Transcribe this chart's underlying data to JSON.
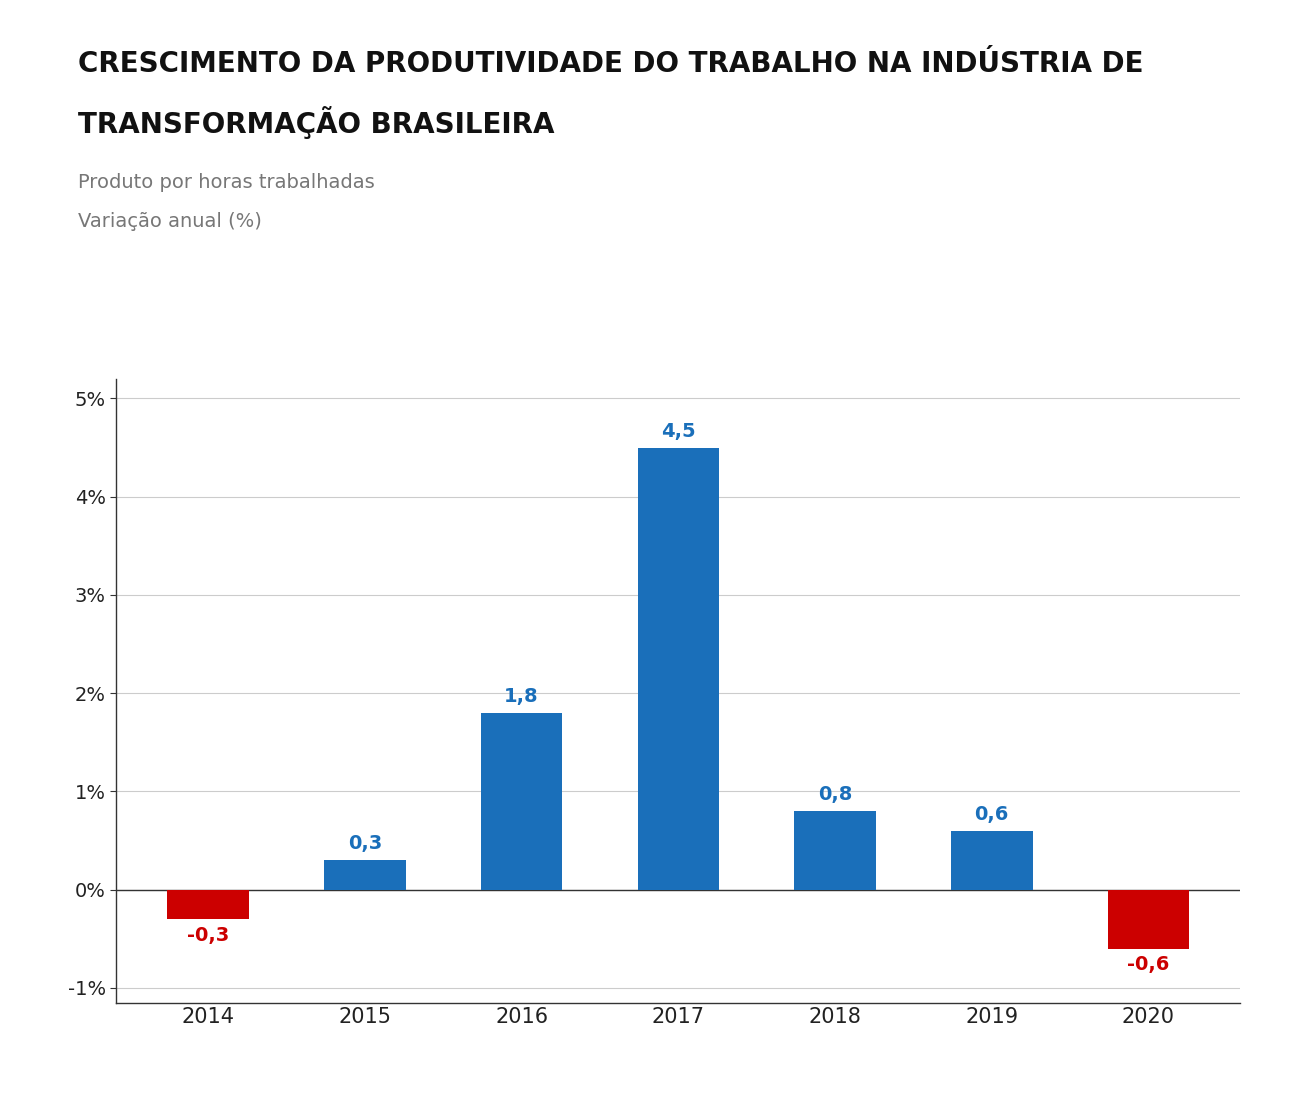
{
  "title_line1": "CRESCIMENTO DA PRODUTIVIDADE DO TRABALHO NA INDÚSTRIA DE",
  "title_line2": "TRANSFORMAÇÃO BRASILEIRA",
  "subtitle1": "Produto por horas trabalhadas",
  "subtitle2": "Variação anual (%)",
  "categories": [
    "2014",
    "2015",
    "2016",
    "2017",
    "2018",
    "2019",
    "2020"
  ],
  "values": [
    -0.3,
    0.3,
    1.8,
    4.5,
    0.8,
    0.6,
    -0.6
  ],
  "bar_colors": [
    "#cc0000",
    "#1a6fba",
    "#1a6fba",
    "#1a6fba",
    "#1a6fba",
    "#1a6fba",
    "#cc0000"
  ],
  "label_colors": [
    "#cc0000",
    "#1a6fba",
    "#1a6fba",
    "#1a6fba",
    "#1a6fba",
    "#1a6fba",
    "#cc0000"
  ],
  "ylim_min": -1.15,
  "ylim_max": 5.2,
  "yticks": [
    -1.0,
    0.0,
    1.0,
    2.0,
    3.0,
    4.0,
    5.0
  ],
  "ytick_labels": [
    "-1%",
    "0%",
    "1%",
    "2%",
    "3%",
    "4%",
    "5%"
  ],
  "background_color": "#ffffff",
  "title_fontsize": 20,
  "subtitle_fontsize": 14,
  "label_fontsize": 14,
  "tick_fontsize": 14,
  "bar_width": 0.52,
  "title_color": "#111111",
  "subtitle_color": "#777777",
  "tick_color": "#222222",
  "spine_color": "#333333",
  "grid_color": "#cccccc"
}
